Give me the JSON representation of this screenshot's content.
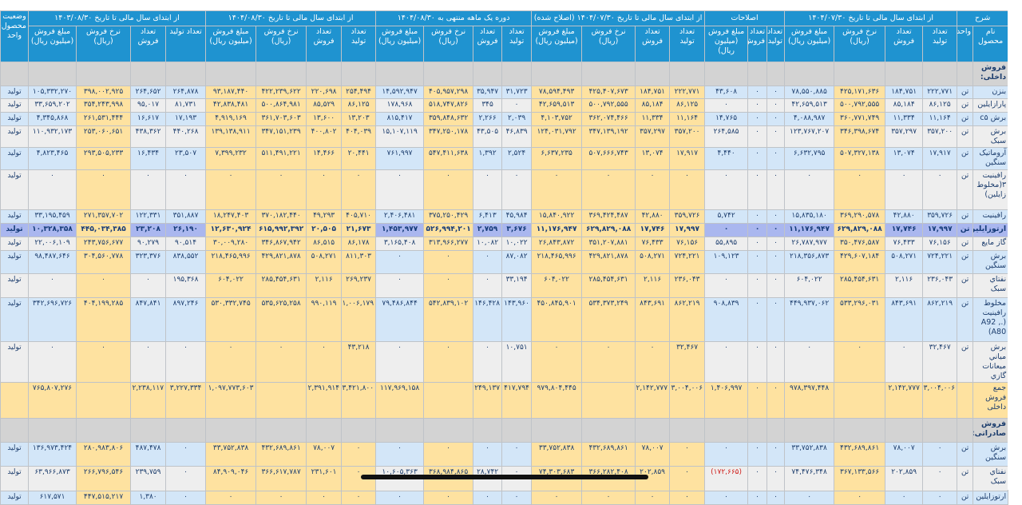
{
  "colors": {
    "header": "#1f93d0",
    "row_blue": "#d3e6f8",
    "row_gray": "#eeeeee",
    "highlight_yellow": "#fee2a0",
    "highlight_row": "#aab7ef",
    "negative": "#d0201c"
  },
  "header": {
    "groups": {
      "sharh": "شرح",
      "original": "از ابتدای سال مالی تا تاریخ ۱۴۰۴/۰۷/۳۰",
      "corrections": "اصلاحات",
      "adjusted": "از ابتدای سال مالی تا تاریخ ۱۴۰۴/۰۷/۳۰ (اصلاح شده)",
      "month": "دوره یک ماهه منتهی به ۱۴۰۴/۰۸/۳۰",
      "ytd": "از ابتدای سال مالی تا تاریخ ۱۴۰۴/۰۸/۳۰",
      "prev_year": "از ابتدای سال مالی تا تاریخ ۱۴۰۳/۰۸/۳۰",
      "status": "وضعیت محصول-واحد"
    },
    "columns": {
      "name": "نام محصول",
      "unit": "واحد",
      "production": "تعداد تولید",
      "sales_qty": "تعداد فروش",
      "rate": "نرخ فروش (ریال)",
      "amount": "مبلغ فروش (میلیون ریال)"
    }
  },
  "rows": [
    {
      "type": "section",
      "name": "فروش داخلی:"
    },
    {
      "type": "data",
      "name": "بنزن",
      "unit": "تن",
      "status": "تولید",
      "values": [
        "۲۲۲,۷۷۱",
        "۱۸۴,۷۵۱",
        "۴۲۵,۱۷۱,۶۳۶",
        "۷۸,۵۵۰,۸۸۵",
        "۰",
        "۰",
        "۴۳,۶۰۸",
        "۲۲۲,۷۷۱",
        "۱۸۴,۷۵۱",
        "۴۲۵,۴۰۷,۶۷۳",
        "۷۸,۵۹۴,۴۹۳",
        "۳۱,۷۲۳",
        "۳۵,۹۴۷",
        "۴۰۵,۹۵۷,۲۹۸",
        "۱۴,۵۹۲,۹۴۷",
        "۲۵۴,۴۹۴",
        "۲۲۰,۶۹۸",
        "۴۲۲,۲۳۹,۶۲۲",
        "۹۳,۱۸۷,۴۴۰",
        "۲۶۴,۸۷۸",
        "۲۶۴,۶۵۲",
        "۳۹۸,۰۰۲,۹۲۵",
        "۱۰۵,۳۳۲,۲۷۰"
      ]
    },
    {
      "type": "data",
      "name": "پارازایلین",
      "unit": "تن",
      "status": "تولید",
      "values": [
        "۸۶,۱۲۵",
        "۸۵,۱۸۴",
        "۵۰۰,۷۹۲,۵۵۵",
        "۴۲,۶۵۹,۵۱۳",
        "۰",
        "۰",
        "۰",
        "۸۶,۱۲۵",
        "۸۵,۱۸۴",
        "۵۰۰,۷۹۲,۵۵۵",
        "۴۲,۶۵۹,۵۱۳",
        "۰",
        "۳۴۵",
        "۵۱۸,۷۴۷,۸۲۶",
        "۱۷۸,۹۶۸",
        "۸۶,۱۲۵",
        "۸۵,۵۲۹",
        "۵۰۰,۸۶۴,۹۸۱",
        "۴۲,۸۳۸,۴۸۱",
        "۸۱,۷۳۱",
        "۹۵,۰۱۷",
        "۳۵۴,۲۴۳,۹۹۸",
        "۳۳,۶۵۹,۲۰۲"
      ]
    },
    {
      "type": "data",
      "name": "برش c۵",
      "unit": "تن",
      "status": "تولید",
      "values": [
        "۱۱,۱۶۴",
        "۱۱,۳۳۴",
        "۳۶۰,۷۷۱,۷۴۹",
        "۴,۰۸۸,۹۸۷",
        "۰",
        "۰",
        "۱۴,۷۶۵",
        "۱۱,۱۶۴",
        "۱۱,۳۳۴",
        "۳۶۲,۰۷۴,۴۶۶",
        "۴,۱۰۳,۷۵۲",
        "۲,۰۳۹",
        "۲,۲۶۶",
        "۳۵۹,۸۴۸,۶۳۲",
        "۸۱۵,۴۱۷",
        "۱۳,۲۰۳",
        "۱۳,۶۰۰",
        "۳۶۱,۷۰۳,۶۰۳",
        "۴,۹۱۹,۱۶۹",
        "۱۷,۱۹۳",
        "۱۶,۶۱۷",
        "۲۶۱,۵۳۱,۴۴۴",
        "۴,۳۴۵,۸۶۸"
      ]
    },
    {
      "type": "data",
      "name": "برش سبک",
      "unit": "تن",
      "status": "تولید",
      "values": [
        "۳۵۷,۲۰۰",
        "۳۵۷,۲۹۷",
        "۳۴۶,۳۹۸,۶۷۴",
        "۱۲۳,۷۶۷,۲۰۷",
        "۰",
        "۰",
        "۲۶۴,۵۸۵",
        "۳۵۷,۲۰۰",
        "۳۵۷,۲۹۷",
        "۳۴۷,۱۳۹,۱۹۲",
        "۱۲۴,۰۳۱,۷۹۲",
        "۴۶,۸۳۹",
        "۴۳,۵۰۵",
        "۳۴۷,۲۵۰,۱۷۸",
        "۱۵,۱۰۷,۱۱۹",
        "۴۰۴,۰۳۹",
        "۴۰۰,۸۰۲",
        "۳۴۷,۱۵۱,۲۳۹",
        "۱۳۹,۱۳۸,۹۱۱",
        "۴۴۰,۲۶۸",
        "۴۳۸,۳۶۲",
        "۲۵۳,۰۶۰,۶۵۱",
        "۱۱۰,۹۳۲,۱۷۳"
      ]
    },
    {
      "type": "data",
      "name": "آروماتیک سنگین",
      "unit": "تن",
      "status": "تولید",
      "values": [
        "۱۷,۹۱۷",
        "۱۳,۰۷۴",
        "۵۰۷,۳۲۷,۱۳۸",
        "۶,۶۳۲,۷۹۵",
        "۰",
        "۰",
        "۴,۴۴۰",
        "۱۷,۹۱۷",
        "۱۳,۰۷۴",
        "۵۰۷,۶۶۶,۷۴۳",
        "۶,۶۳۷,۲۳۵",
        "۲,۵۲۴",
        "۱,۳۹۲",
        "۵۴۷,۴۱۱,۶۳۸",
        "۷۶۱,۹۹۷",
        "۲۰,۴۴۱",
        "۱۴,۴۶۶",
        "۵۱۱,۴۹۱,۲۲۱",
        "۷,۳۹۹,۲۳۲",
        "۲۳,۵۰۷",
        "۱۶,۴۳۴",
        "۲۹۳,۵۰۵,۲۳۳",
        "۴,۸۲۳,۴۶۵"
      ]
    },
    {
      "type": "data",
      "name": "رافینیت ۳(مخلوط زایلین)",
      "unit": "تن",
      "status": "تولید",
      "values": [
        "۰",
        "۰",
        "۰",
        "۰",
        "۰",
        "۰",
        "۰",
        "۰",
        "۰",
        "۰",
        "۰",
        "۰",
        "۰",
        "۰",
        "۰",
        "۰",
        "۰",
        "۰",
        "۰",
        "۰",
        "۰",
        "۰",
        "۰"
      ]
    },
    {
      "type": "data",
      "name": "رافینیت",
      "unit": "تن",
      "status": "تولید",
      "values": [
        "۳۵۹,۷۲۶",
        "۴۲,۸۸۰",
        "۳۶۹,۲۹۰,۵۷۸",
        "۱۵,۸۳۵,۱۸۰",
        "۰",
        "۰",
        "۵,۷۴۲",
        "۳۵۹,۷۲۶",
        "۴۲,۸۸۰",
        "۳۶۹,۴۲۴,۴۸۷",
        "۱۵,۸۴۰,۹۲۲",
        "۴۵,۹۸۴",
        "۶,۴۱۳",
        "۳۷۵,۲۵۰,۴۲۹",
        "۲,۴۰۶,۴۸۱",
        "۴۰۵,۷۱۰",
        "۴۹,۲۹۳",
        "۳۷۰,۱۸۲,۴۴۰",
        "۱۸,۲۴۷,۴۰۳",
        "۳۵۱,۸۸۷",
        "۱۲۲,۳۳۱",
        "۲۷۱,۳۵۷,۷۰۲",
        "۳۳,۱۹۵,۴۵۹"
      ]
    },
    {
      "type": "highlight",
      "name": "ارتوزایلین",
      "unit": "تن",
      "status": "تولید",
      "values": [
        "۱۷,۹۹۷",
        "۱۷,۷۴۶",
        "۶۲۹,۸۲۹,۰۸۸",
        "۱۱,۱۷۶,۹۴۷",
        "۰",
        "۰",
        "۰",
        "۱۷,۹۹۷",
        "۱۷,۷۴۶",
        "۶۲۹,۸۲۹,۰۸۸",
        "۱۱,۱۷۶,۹۴۷",
        "۳,۶۷۶",
        "۲,۷۵۹",
        "۵۲۶,۹۹۴,۲۰۱",
        "۱,۴۵۳,۹۷۷",
        "۲۱,۶۷۳",
        "۲۰,۵۰۵",
        "۶۱۵,۹۹۲,۳۹۲",
        "۱۲,۶۳۰,۹۲۴",
        "۲۶,۱۹۰",
        "۲۳,۲۰۸",
        "۴۴۵,۰۳۴,۳۸۵",
        "۱۰,۳۲۸,۳۵۸"
      ]
    },
    {
      "type": "data",
      "name": "گاز مایع",
      "unit": "تن",
      "status": "تولید",
      "values": [
        "۷۶,۱۵۶",
        "۷۶,۴۳۳",
        "۳۵۰,۴۷۶,۵۸۷",
        "۲۶,۷۸۷,۹۷۷",
        "۰",
        "۰",
        "۵۵,۸۹۵",
        "۷۶,۱۵۶",
        "۷۶,۴۳۳",
        "۳۵۱,۲۰۷,۸۸۱",
        "۲۶,۸۴۳,۸۷۲",
        "۱۰,۰۲۲",
        "۱۰,۰۸۲",
        "۳۱۳,۹۶۶,۲۷۷",
        "۳,۱۶۵,۴۰۸",
        "۸۶,۱۷۸",
        "۸۶,۵۱۵",
        "۳۴۶,۸۶۷,۹۴۲",
        "۳۰,۰۰۹,۲۸۰",
        "۹۰,۵۱۴",
        "۹۰,۲۷۹",
        "۲۴۳,۷۵۶,۶۷۷",
        "۲۲,۰۰۶,۱۰۹"
      ]
    },
    {
      "type": "data",
      "name": "برش سنگین",
      "unit": "تن",
      "status": "تولید",
      "values": [
        "۷۲۴,۲۲۱",
        "۵۰۸,۲۷۱",
        "۴۲۹,۶۰۷,۱۸۴",
        "۲۱۸,۳۵۶,۸۷۳",
        "۰",
        "۰",
        "۱۰۹,۱۲۳",
        "۷۲۴,۲۲۱",
        "۵۰۸,۲۷۱",
        "۴۲۹,۸۲۱,۸۷۸",
        "۲۱۸,۴۶۵,۹۹۶",
        "۸۷,۰۸۲",
        "۰",
        "۰",
        "۰",
        "۸۱۱,۳۰۳",
        "۵۰۸,۲۷۱",
        "۴۲۹,۸۲۱,۸۷۸",
        "۲۱۸,۴۶۵,۹۹۶",
        "۸۳۸,۵۵۲",
        "۳۲۳,۳۷۶",
        "۳۰۴,۵۶۰,۷۷۸",
        "۹۸,۴۸۷,۶۴۶"
      ]
    },
    {
      "type": "data",
      "name": "نفتاي سبک",
      "unit": "تن",
      "status": "تولید",
      "values": [
        "۲۳۶,۰۴۳",
        "۲,۱۱۶",
        "۲۸۵,۴۵۴,۶۳۱",
        "۶۰۴,۰۲۲",
        "۰",
        "۰",
        "۰",
        "۲۳۶,۰۴۳",
        "۲,۱۱۶",
        "۲۸۵,۴۵۴,۶۳۱",
        "۶۰۴,۰۲۲",
        "۳۳,۱۹۴",
        "۰",
        "۰",
        "۰",
        "۲۶۹,۲۳۷",
        "۲,۱۱۶",
        "۲۸۵,۴۵۴,۶۳۱",
        "۶۰۴,۰۲۲",
        "۱۹۵,۳۶۸",
        "۰",
        "۰",
        "۰"
      ]
    },
    {
      "type": "data",
      "name": "مخلوط رافینیت (A92 ,. A80)",
      "unit": "تن",
      "status": "تولید",
      "values": [
        "۸۶۲,۲۱۹",
        "۸۴۳,۶۹۱",
        "۵۳۳,۲۹۶,۰۳۱",
        "۴۴۹,۹۳۷,۰۶۲",
        "۰",
        "۰",
        "۹۰۸,۸۳۹",
        "۸۶۲,۲۱۹",
        "۸۴۳,۶۹۱",
        "۵۳۴,۳۷۳,۲۴۹",
        "۴۵۰,۸۴۵,۹۰۱",
        "۱۴۳,۹۶۰",
        "۱۴۶,۴۲۸",
        "۵۴۲,۸۳۹,۱۰۲",
        "۷۹,۴۸۶,۸۴۴",
        "۱,۰۰۶,۱۷۹",
        "۹۹۰,۱۱۹",
        "۵۳۵,۶۲۵,۲۵۸",
        "۵۳۰,۳۳۲,۷۴۵",
        "۸۹۷,۲۴۶",
        "۸۴۷,۸۴۱",
        "۴۰۴,۱۹۹,۲۸۵",
        "۳۴۲,۶۹۶,۷۲۶"
      ]
    },
    {
      "type": "data",
      "name": "برش میاني میعانات گازي",
      "unit": "تن",
      "status": "تولید",
      "values": [
        "۳۲,۴۶۷",
        "۰",
        "۰",
        "۰",
        "۰",
        "۰",
        "۰",
        "۳۲,۴۶۷",
        "۰",
        "۰",
        "۰",
        "۱۰,۷۵۱",
        "۰",
        "۰",
        "۰",
        "۴۳,۲۱۸",
        "۰",
        "۰",
        "۰",
        "۰",
        "۰",
        "۰",
        "۰"
      ]
    },
    {
      "type": "total",
      "name": "جمع فروش داخلی",
      "unit": "",
      "status": "",
      "values": [
        "۳,۰۰۴,۰۰۶",
        "۲,۱۴۲,۷۷۷",
        "",
        "۹۷۸,۳۹۷,۴۴۸",
        "۰",
        "۰",
        "۱,۴۰۶,۹۹۷",
        "۳,۰۰۴,۰۰۶",
        "۲,۱۴۲,۷۷۷",
        "",
        "۹۷۹,۸۰۴,۴۴۵",
        "۴۱۷,۷۹۴",
        "۲۴۹,۱۳۷",
        "",
        "۱۱۷,۹۶۹,۱۵۸",
        "۳,۴۲۱,۸۰۰",
        "۲,۳۹۱,۹۱۴",
        "",
        "۱,۰۹۷,۷۷۳,۶۰۳",
        "۳,۲۲۷,۳۳۴",
        "۲,۲۳۸,۱۱۷",
        "",
        "۷۶۵,۸۰۷,۲۷۶"
      ]
    },
    {
      "type": "section",
      "name": "فروش صادراتی:"
    },
    {
      "type": "data",
      "name": "برش سنگین",
      "unit": "تن",
      "status": "تولید",
      "values": [
        "۰",
        "۷۸,۰۰۷",
        "۴۳۲,۶۸۹,۸۶۱",
        "۳۳,۷۵۲,۸۳۸",
        "۰",
        "۰",
        "۰",
        "۰",
        "۷۸,۰۰۷",
        "۴۳۲,۶۸۹,۸۶۱",
        "۳۳,۷۵۲,۸۳۸",
        "۰",
        "۰",
        "۰",
        "۰",
        "۰",
        "۷۸,۰۰۷",
        "۴۳۲,۶۸۹,۸۶۱",
        "۳۳,۷۵۲,۸۳۸",
        "۰",
        "۴۸۷,۴۷۸",
        "۲۸۰,۹۸۳,۸۰۶",
        "۱۳۶,۹۷۳,۴۲۴"
      ]
    },
    {
      "type": "data",
      "name": "نفتاي سبک",
      "unit": "تن",
      "status": "تولید",
      "values": [
        "۰",
        "۲۰۲,۸۵۹",
        "۳۶۷,۱۳۳,۵۶۶",
        "۷۴,۴۷۶,۳۴۸",
        "۰",
        "۰",
        "(۱۷۲,۶۶۵)",
        "۰",
        "۲۰۲,۸۵۹",
        "۳۶۶,۲۸۲,۴۰۸",
        "۷۴,۳۰۳,۶۸۳",
        "۰",
        "۲۸,۷۴۲",
        "۳۶۸,۹۸۴,۸۶۵",
        "۱۰,۶۰۵,۳۶۳",
        "۰",
        "۲۳۱,۶۰۱",
        "۳۶۶,۶۱۷,۷۸۷",
        "۸۴,۹۰۹,۰۴۶",
        "۰",
        "۲۳۹,۷۵۹",
        "۲۶۶,۷۹۶,۵۴۶",
        "۶۳,۹۶۶,۸۷۳"
      ]
    },
    {
      "type": "data",
      "name": "ارتوزایلین",
      "unit": "تن",
      "status": "تولید",
      "values": [
        "۰",
        "۰",
        "۰",
        "۰",
        "۰",
        "۰",
        "۰",
        "۰",
        "۰",
        "۰",
        "۰",
        "۰",
        "۰",
        "۰",
        "۰",
        "۰",
        "۰",
        "۰",
        "۰",
        "۰",
        "۱,۳۸۰",
        "۴۴۷,۵۱۵,۲۱۷",
        "۶۱۷,۵۷۱"
      ]
    }
  ]
}
